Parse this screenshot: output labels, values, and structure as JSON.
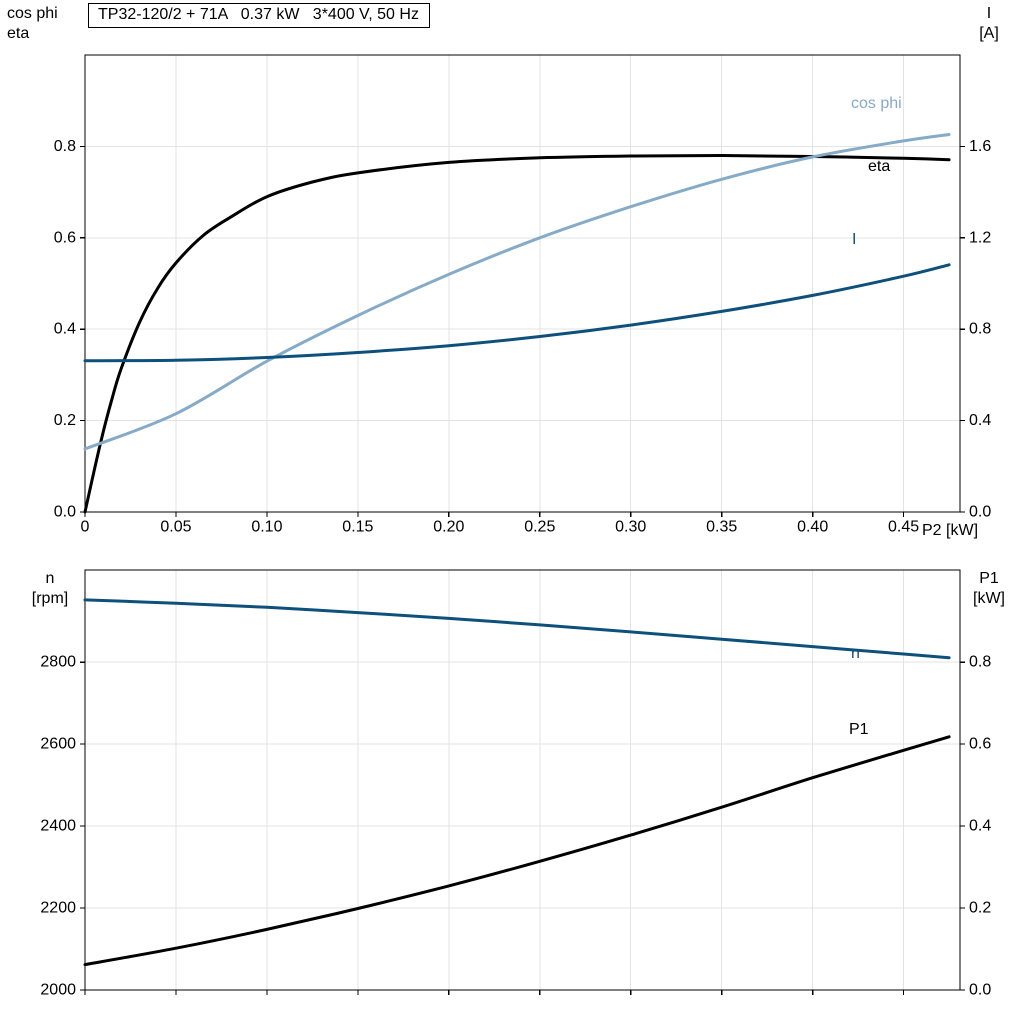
{
  "title_box": "TP32-120/2 + 71A   0.37 kW   3*400 V, 50 Hz",
  "axis_labels": {
    "top_left_line1": "cos phi",
    "top_left_line2": "eta",
    "top_right_line1": "I",
    "top_right_line2": "[A]",
    "x_axis": "P2 [kW]",
    "bottom_left_line1": "n",
    "bottom_left_line2": "[rpm]",
    "bottom_right_line1": "P1",
    "bottom_right_line2": "[kW]"
  },
  "curve_labels": {
    "cos_phi": "cos phi",
    "eta": "eta",
    "current": "I",
    "speed": "n",
    "power_in": "P1"
  },
  "colors": {
    "light_blue": "#85abc8",
    "dark_blue": "#0d507c",
    "black": "#000000",
    "grid": "#e3e3e3",
    "frame": "#000000"
  },
  "chart_data": [
    {
      "type": "line",
      "title": "TP32-120/2 + 71A   0.37 kW   3*400 V, 50 Hz",
      "xlabel": "P2 [kW]",
      "ylabel_left": "cos phi / eta",
      "ylabel_right": "I [A]",
      "xlim": [
        0,
        0.481
      ],
      "ylim_left": [
        0,
        1.0
      ],
      "ylim_right": [
        0,
        2.0
      ],
      "grid": true,
      "legend_position": "curve-end-labels",
      "xtick_values": [
        0,
        0.05,
        0.1,
        0.15,
        0.2,
        0.25,
        0.3,
        0.35,
        0.4,
        0.45
      ],
      "xtick_labels": [
        "0",
        "0.05",
        "0.10",
        "0.15",
        "0.20",
        "0.25",
        "0.30",
        "0.35",
        "0.40",
        "0.45"
      ],
      "ytick_left_values": [
        0,
        0.2,
        0.4,
        0.6,
        0.8
      ],
      "ytick_left_labels": [
        "0.0",
        "0.2",
        "0.4",
        "0.6",
        "0.8"
      ],
      "ytick_right_values": [
        0,
        0.4,
        0.8,
        1.2,
        1.6
      ],
      "ytick_right_labels": [
        "0.0",
        "0.4",
        "0.8",
        "1.2",
        "1.6"
      ],
      "series": [
        {
          "name": "eta",
          "axis": "left",
          "color": "black",
          "x": [
            0,
            0.005,
            0.01,
            0.015,
            0.02,
            0.03,
            0.04,
            0.05,
            0.065,
            0.08,
            0.1,
            0.125,
            0.15,
            0.2,
            0.25,
            0.3,
            0.35,
            0.4,
            0.45,
            0.475
          ],
          "y": [
            0,
            0.09,
            0.175,
            0.25,
            0.315,
            0.415,
            0.49,
            0.545,
            0.605,
            0.645,
            0.69,
            0.722,
            0.742,
            0.765,
            0.775,
            0.779,
            0.78,
            0.778,
            0.774,
            0.771
          ]
        },
        {
          "name": "cos phi",
          "axis": "left",
          "color": "light_blue",
          "x": [
            0,
            0.05,
            0.1,
            0.15,
            0.2,
            0.25,
            0.3,
            0.35,
            0.4,
            0.45,
            0.475
          ],
          "y": [
            0.138,
            0.215,
            0.33,
            0.43,
            0.52,
            0.6,
            0.668,
            0.728,
            0.777,
            0.812,
            0.826
          ]
        },
        {
          "name": "I",
          "axis": "right",
          "color": "dark_blue",
          "x": [
            0,
            0.05,
            0.1,
            0.15,
            0.2,
            0.25,
            0.3,
            0.35,
            0.4,
            0.45,
            0.475
          ],
          "y": [
            0.662,
            0.664,
            0.676,
            0.698,
            0.728,
            0.768,
            0.818,
            0.878,
            0.948,
            1.032,
            1.082
          ]
        }
      ]
    },
    {
      "type": "line",
      "title": "",
      "xlabel": "P2 [kW]",
      "ylabel_left": "n [rpm]",
      "ylabel_right": "P1 [kW]",
      "xlim": [
        0,
        0.481
      ],
      "ylim_left": [
        2000,
        3025
      ],
      "ylim_right": [
        0,
        1.025
      ],
      "grid": true,
      "legend_position": "curve-end-labels",
      "xtick_values": [
        0,
        0.05,
        0.1,
        0.15,
        0.2,
        0.25,
        0.3,
        0.35,
        0.4,
        0.45
      ],
      "xtick_labels": [],
      "ytick_left_values": [
        2000,
        2200,
        2400,
        2600,
        2800
      ],
      "ytick_left_labels": [
        "2000",
        "2200",
        "2400",
        "2600",
        "2800"
      ],
      "ytick_right_values": [
        0,
        0.2,
        0.4,
        0.6,
        0.8
      ],
      "ytick_right_labels": [
        "0.0",
        "0.2",
        "0.4",
        "0.6",
        "0.8"
      ],
      "series": [
        {
          "name": "n",
          "axis": "left",
          "color": "dark_blue",
          "x": [
            0,
            0.05,
            0.1,
            0.15,
            0.2,
            0.25,
            0.3,
            0.35,
            0.4,
            0.45,
            0.475
          ],
          "y": [
            2952,
            2944,
            2934,
            2921,
            2907,
            2891,
            2874,
            2856,
            2838,
            2820,
            2811
          ]
        },
        {
          "name": "P1",
          "axis": "right",
          "color": "black",
          "x": [
            0,
            0.05,
            0.1,
            0.15,
            0.2,
            0.25,
            0.3,
            0.35,
            0.4,
            0.45,
            0.475
          ],
          "y": [
            0.062,
            0.102,
            0.148,
            0.199,
            0.254,
            0.314,
            0.378,
            0.446,
            0.518,
            0.585,
            0.618
          ]
        }
      ]
    }
  ]
}
